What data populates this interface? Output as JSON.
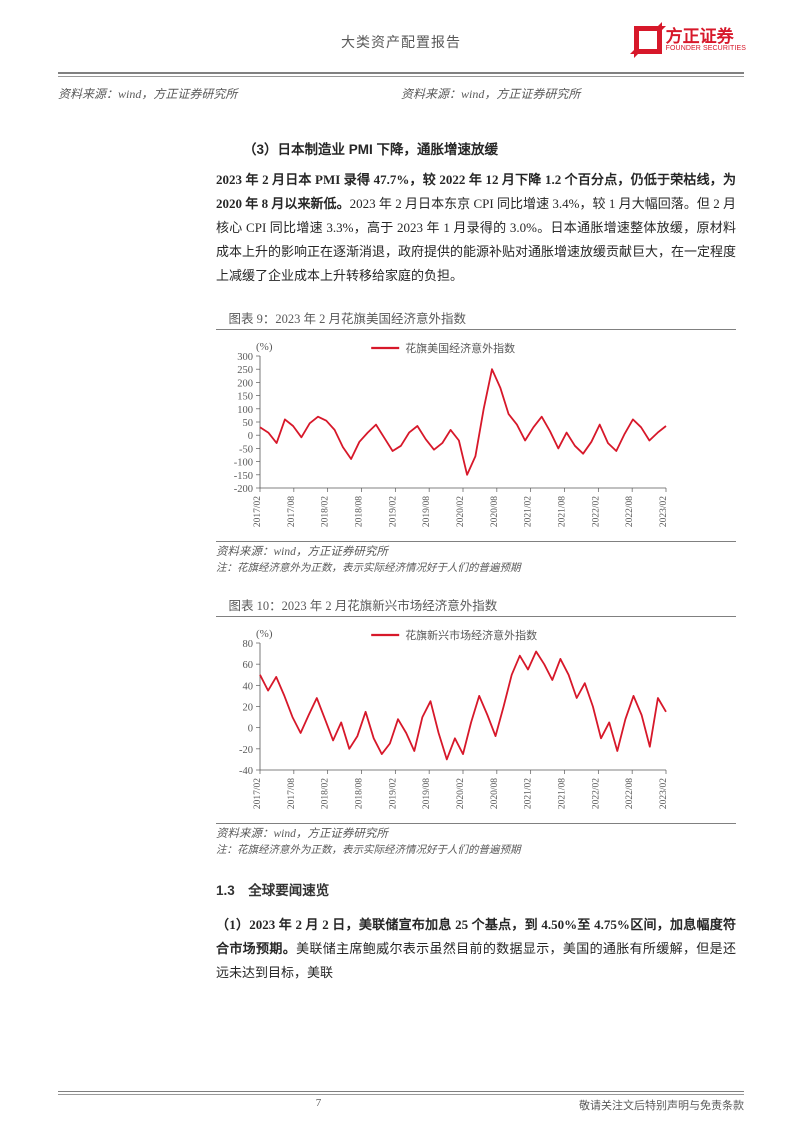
{
  "header": {
    "title": "大类资产配置报告"
  },
  "logo": {
    "cn": "方正证券",
    "en": "FOUNDER SECURITIES"
  },
  "source_row": {
    "left": "资料来源：wind，方正证券研究所",
    "right": "资料来源：wind，方正证券研究所"
  },
  "section3": {
    "title": "（3）日本制造业 PMI 下降，通胀增速放缓",
    "bold": "2023 年 2 月日本 PMI 录得 47.7%，较 2022 年 12 月下降 1.2 个百分点，仍低于荣枯线，为 2020 年 8 月以来新低。",
    "rest": "2023 年 2 月日本东京 CPI 同比增速 3.4%，较 1 月大幅回落。但 2 月核心 CPI 同比增速 3.3%，高于 2023 年 1 月录得的 3.0%。日本通胀增速整体放缓，原材料成本上升的影响正在逐渐消退，政府提供的能源补贴对通胀增速放缓贡献巨大，在一定程度上减缓了企业成本上升转移给家庭的负担。"
  },
  "chart9": {
    "title": "图表 9：2023 年 2 月花旗美国经济意外指数",
    "type": "line",
    "legend": "花旗美国经济意外指数",
    "y_unit": "(%)",
    "line_color": "#d7182a",
    "y_min": -200,
    "y_max": 300,
    "y_step": 50,
    "x_labels": [
      "2017/02",
      "2017/08",
      "2018/02",
      "2018/08",
      "2019/02",
      "2019/08",
      "2020/02",
      "2020/08",
      "2021/02",
      "2021/08",
      "2022/02",
      "2022/08",
      "2023/02"
    ],
    "values": [
      30,
      10,
      -30,
      60,
      35,
      -8,
      45,
      70,
      55,
      20,
      -45,
      -90,
      -25,
      10,
      40,
      -10,
      -60,
      -40,
      10,
      35,
      -15,
      -55,
      -30,
      20,
      -20,
      -150,
      -80,
      100,
      250,
      180,
      80,
      40,
      -20,
      30,
      70,
      15,
      -50,
      10,
      -40,
      -70,
      -25,
      40,
      -30,
      -60,
      5,
      60,
      30,
      -20,
      10,
      35
    ],
    "source": "资料来源：wind，方正证券研究所",
    "note": "注：花旗经济意外为正数，表示实际经济情况好于人们的普遍预期"
  },
  "chart10": {
    "title": "图表 10：2023 年 2 月花旗新兴市场经济意外指数",
    "type": "line",
    "legend": "花旗新兴市场经济意外指数",
    "y_unit": "(%)",
    "line_color": "#d7182a",
    "y_min": -40,
    "y_max": 80,
    "y_step": 20,
    "x_labels": [
      "2017/02",
      "2017/08",
      "2018/02",
      "2018/08",
      "2019/02",
      "2019/08",
      "2020/02",
      "2020/08",
      "2021/02",
      "2021/08",
      "2022/02",
      "2022/08",
      "2023/02"
    ],
    "values": [
      50,
      35,
      48,
      30,
      10,
      -5,
      12,
      28,
      8,
      -12,
      5,
      -20,
      -8,
      15,
      -10,
      -25,
      -15,
      8,
      -5,
      -22,
      10,
      25,
      -5,
      -30,
      -10,
      -25,
      5,
      30,
      12,
      -8,
      20,
      50,
      68,
      55,
      72,
      60,
      45,
      65,
      50,
      28,
      42,
      20,
      -10,
      5,
      -22,
      8,
      30,
      12,
      -18,
      28,
      15
    ],
    "source": "资料来源：wind，方正证券研究所",
    "note": "注：花旗经济意外为正数，表示实际经济情况好于人们的普遍预期"
  },
  "section_nav": {
    "label": "1.3　全球要闻速览"
  },
  "para2": {
    "bold": "（1）2023 年 2 月 2 日，美联储宣布加息 25 个基点，到 4.50%至 4.75%区间，加息幅度符合市场预期。",
    "rest": "美联储主席鲍威尔表示虽然目前的数据显示，美国的通胀有所缓解，但是还远未达到目标，美联"
  },
  "footer": {
    "page": "7",
    "disclaimer": "敬请关注文后特别声明与免责条款"
  }
}
